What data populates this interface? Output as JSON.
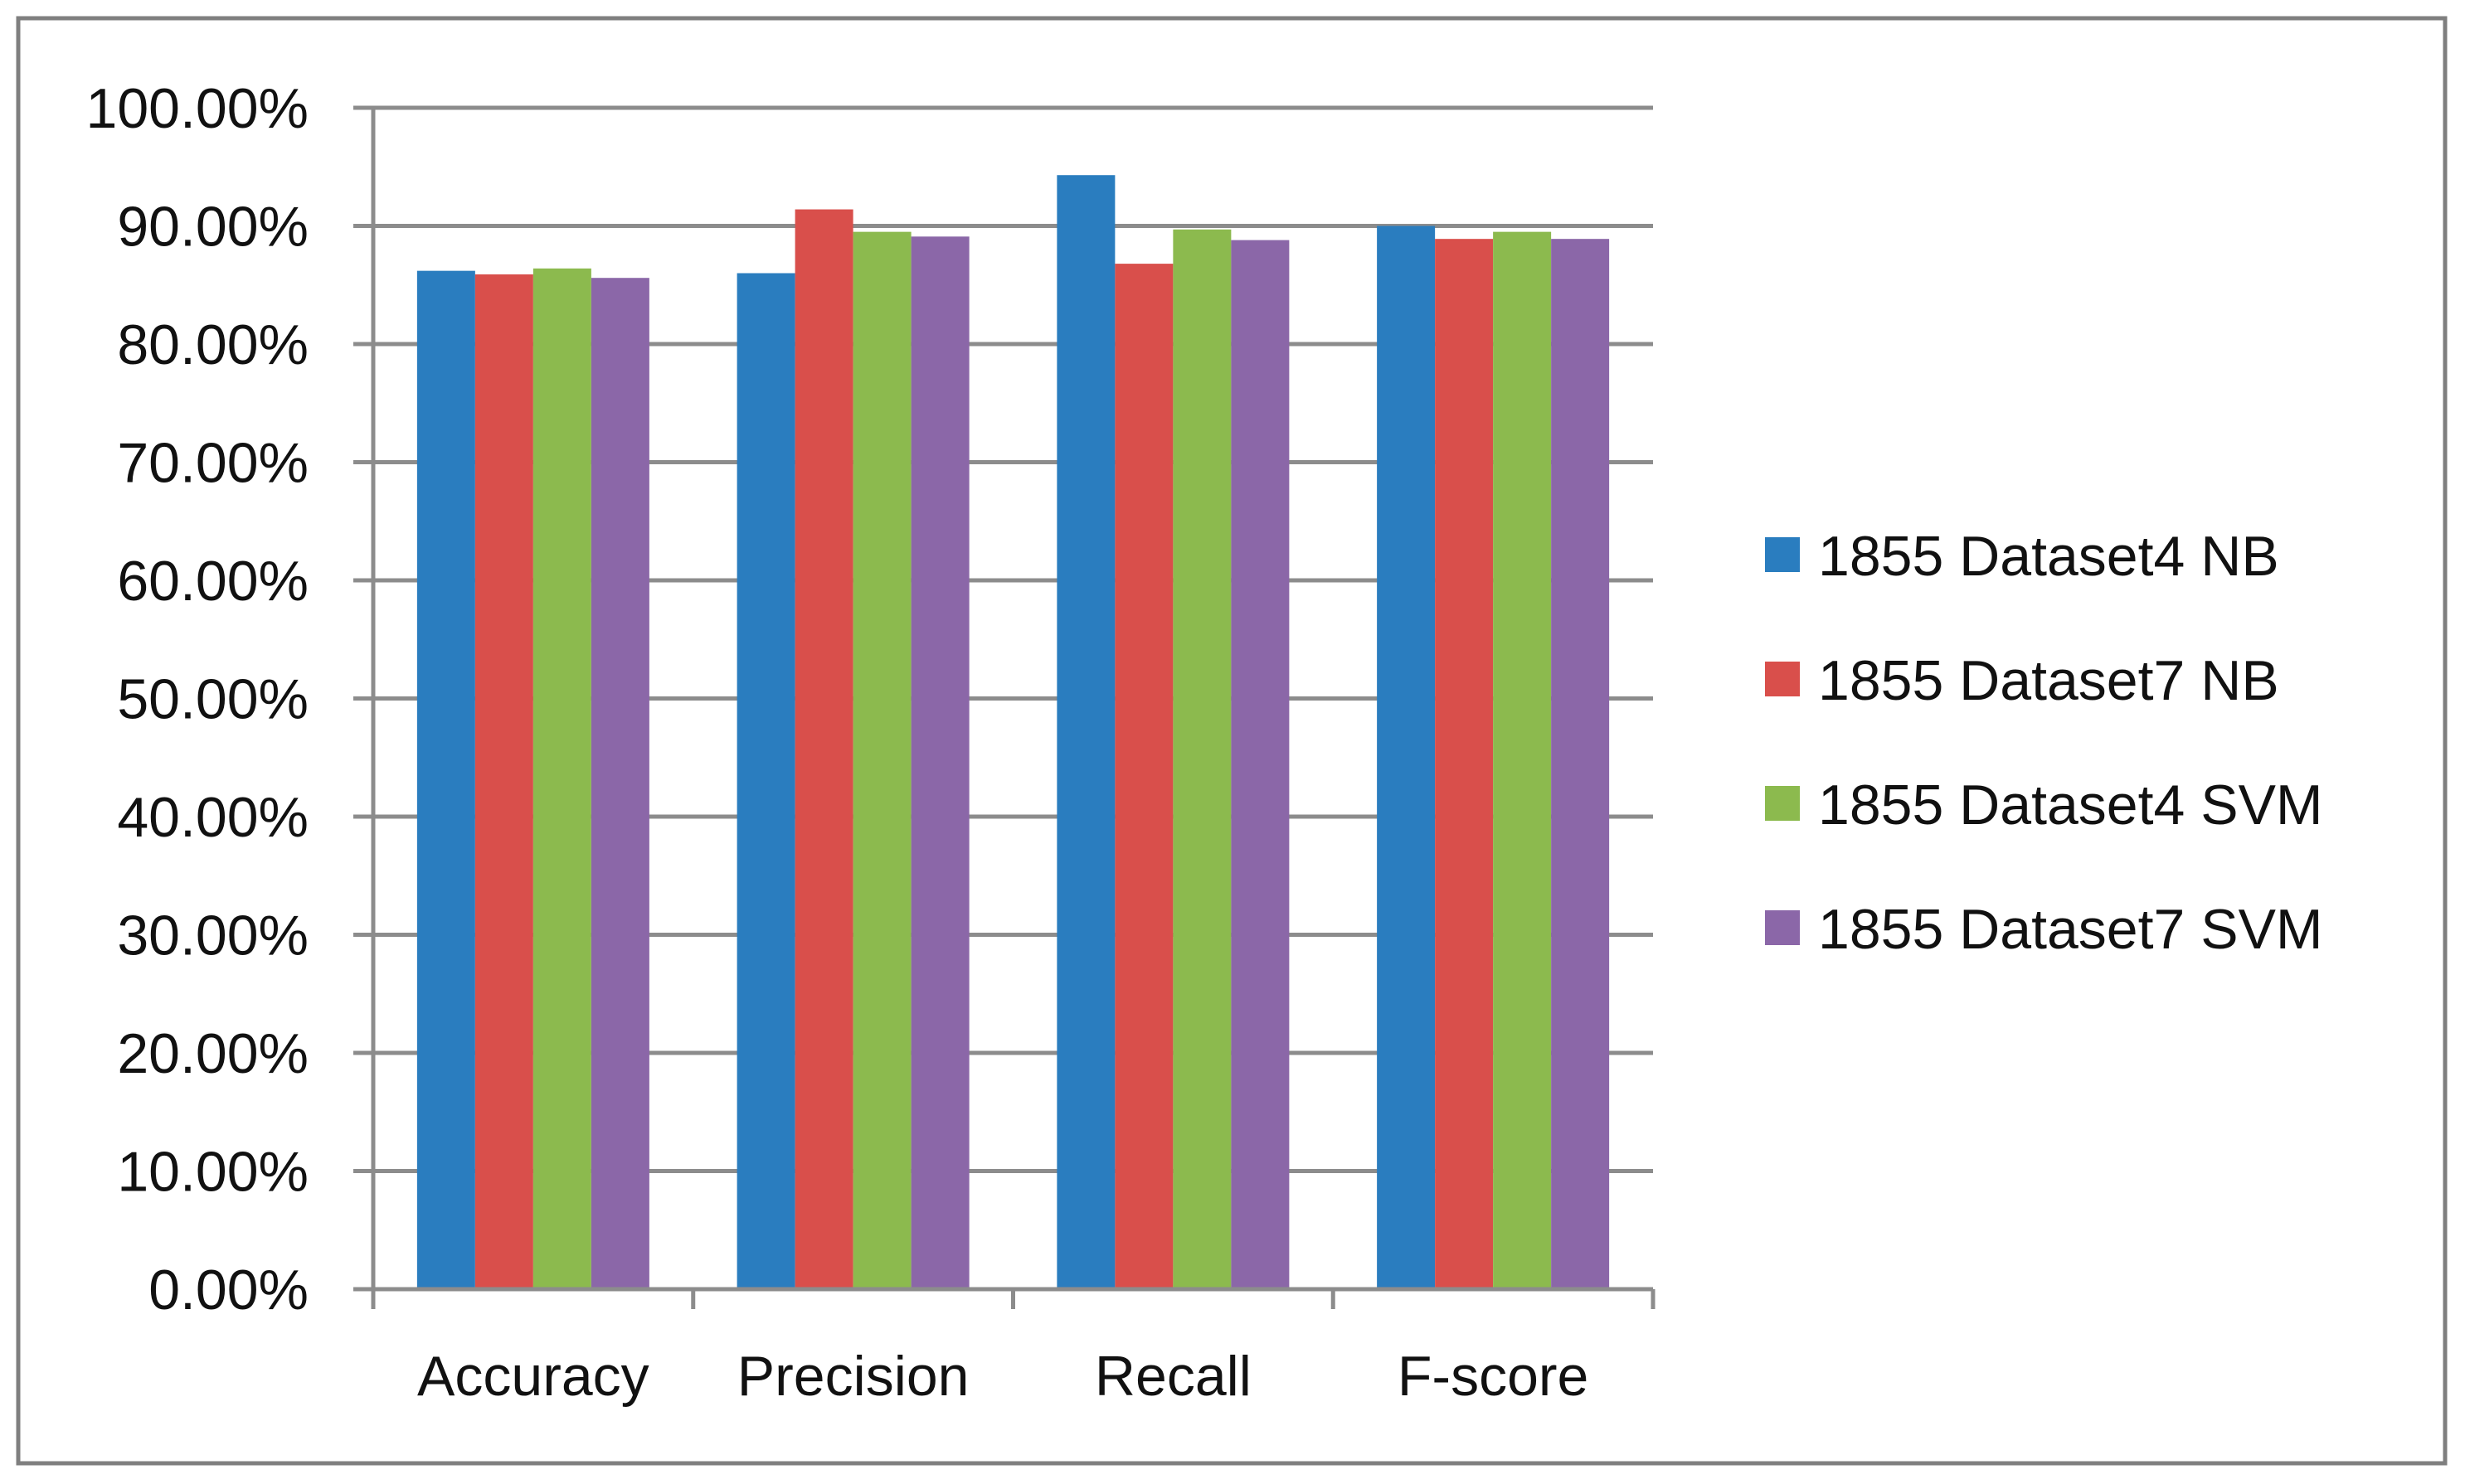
{
  "chart_data": {
    "type": "bar",
    "categories": [
      "Accuracy",
      "Precision",
      "Recall",
      "F-score"
    ],
    "series": [
      {
        "name": "1855 Dataset4 NB",
        "color": "#2a7dbf",
        "values": [
          0.862,
          0.86,
          0.943,
          0.9
        ]
      },
      {
        "name": "1855 Dataset7 NB",
        "color": "#d94f4b",
        "values": [
          0.859,
          0.914,
          0.868,
          0.889
        ]
      },
      {
        "name": "1855 Dataset4 SVM",
        "color": "#8cba4e",
        "values": [
          0.864,
          0.895,
          0.897,
          0.895
        ]
      },
      {
        "name": "1855 Dataset7 SVM",
        "color": "#8b67a8",
        "values": [
          0.856,
          0.891,
          0.888,
          0.889
        ]
      }
    ],
    "y_tick_labels": [
      "0.00%",
      "10.00%",
      "20.00%",
      "30.00%",
      "40.00%",
      "50.00%",
      "60.00%",
      "70.00%",
      "80.00%",
      "90.00%",
      "100.00%"
    ],
    "ylim": [
      0,
      1
    ],
    "y_format": "percent",
    "grid": true,
    "legend_position": "right",
    "title": "",
    "xlabel": "",
    "ylabel": ""
  }
}
